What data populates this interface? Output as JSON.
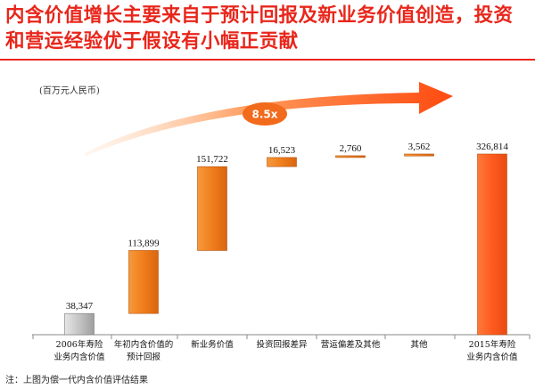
{
  "header": {
    "title": "内含价值增长主要来自于预计回报及新业务价值创造，投资和营运经验优于假设有小幅正贡献"
  },
  "unit_label": "(百万元人民币)",
  "footnote": "注：上图为偿一代内含价值评估结果",
  "growth_badge": "8.5x",
  "colors": {
    "title": "#e8261b",
    "orange_bar": "#f07d1c",
    "final_bar": "#ff5a1f",
    "start_bar": "#b9b9b9",
    "arrow": "#ff5a1f",
    "badge": "#f26a1b"
  },
  "chart_data": {
    "type": "bar",
    "subtype": "waterfall",
    "categories": [
      "2006年寿险业务内含价值",
      "年初内含价值的预计回报",
      "新业务价值",
      "投资回报差异",
      "营运偏差及其他",
      "其他",
      "2015年寿险业务内含价值"
    ],
    "values": [
      38347,
      113899,
      151722,
      16523,
      2760,
      3562,
      326814
    ],
    "value_labels": [
      "38,347",
      "113,899",
      "151,722",
      "16,523",
      "2,760",
      "3,562",
      "326,814"
    ],
    "kinds": [
      "total",
      "delta",
      "delta",
      "delta",
      "delta",
      "delta",
      "total"
    ],
    "ylim": [
      0,
      326814
    ],
    "grid": false,
    "legend": "none",
    "title": "",
    "xlabel": "",
    "ylabel": ""
  }
}
